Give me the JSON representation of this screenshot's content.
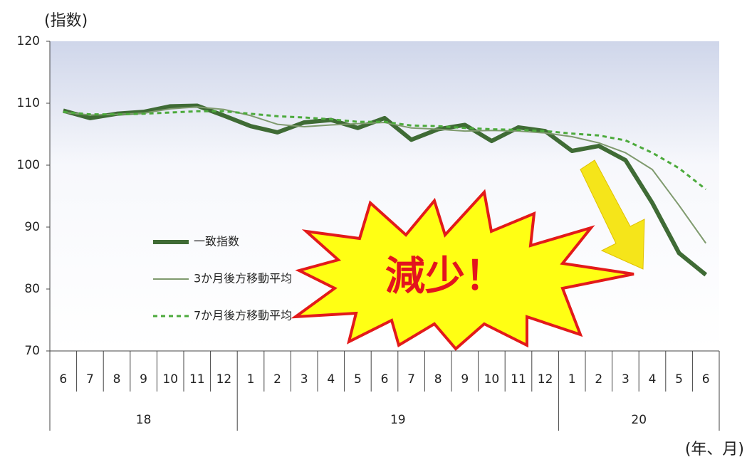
{
  "chart_data": {
    "type": "line",
    "y_label": "(指数)",
    "x_label": "(年、月)",
    "annotation": "減少！",
    "categories": [
      "6",
      "7",
      "8",
      "9",
      "10",
      "11",
      "12",
      "1",
      "2",
      "3",
      "4",
      "5",
      "6",
      "7",
      "8",
      "9",
      "10",
      "11",
      "12",
      "1",
      "2",
      "3",
      "4",
      "5",
      "6"
    ],
    "years": [
      "18",
      "19",
      "20"
    ],
    "ylim": [
      70,
      120
    ],
    "yticks": [
      70,
      80,
      90,
      100,
      110,
      120
    ],
    "series": [
      {
        "name": "一致指数",
        "color": "#3f6b35",
        "width": 6,
        "dashed": false,
        "values": [
          108.8,
          107.6,
          108.3,
          108.6,
          109.5,
          109.6,
          108.0,
          106.3,
          105.3,
          106.9,
          107.3,
          106.0,
          107.6,
          104.1,
          105.8,
          106.5,
          103.9,
          106.1,
          105.5,
          102.3,
          103.1,
          100.8,
          93.9,
          85.8,
          82.3
        ]
      },
      {
        "name": "3か月後方移動平均",
        "color": "#7f9a6e",
        "width": 2,
        "dashed": false,
        "values": [
          108.5,
          108.1,
          108.2,
          108.4,
          109.1,
          109.4,
          109.0,
          108.0,
          106.6,
          106.2,
          106.5,
          106.7,
          106.9,
          106.0,
          105.8,
          105.5,
          105.6,
          105.5,
          105.2,
          104.6,
          103.6,
          102.0,
          99.3,
          93.5,
          87.4
        ]
      },
      {
        "name": "7か月後方移動平均",
        "color": "#4caa3c",
        "width": 3,
        "dashed": true,
        "values": [
          108.6,
          108.2,
          108.2,
          108.3,
          108.5,
          108.7,
          108.7,
          108.3,
          107.9,
          107.7,
          107.4,
          107.0,
          107.0,
          106.4,
          106.3,
          106.0,
          105.8,
          105.7,
          105.5,
          105.1,
          104.8,
          104.0,
          102.0,
          99.5,
          96.1
        ]
      }
    ]
  }
}
